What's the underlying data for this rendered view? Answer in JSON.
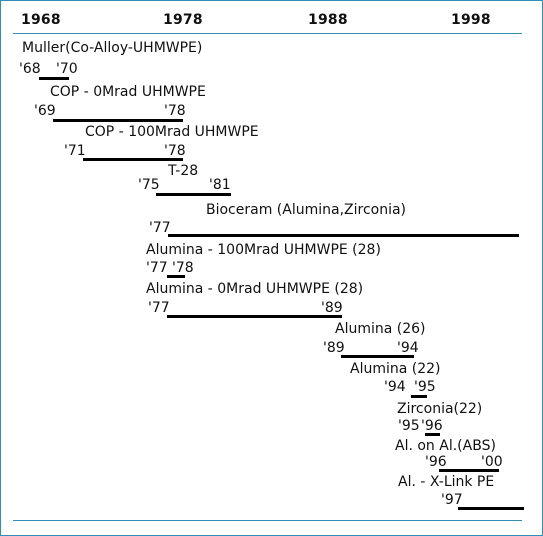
{
  "colors": {
    "frame": "#2f8fb5",
    "bar": "#000000",
    "text": "#111111"
  },
  "axis": {
    "years": [
      "1968",
      "1978",
      "1988",
      "1998"
    ]
  },
  "products": [
    {
      "name": "Muller(Co-Alloy-UHMWPE)",
      "years": [
        "'68",
        "'70"
      ]
    },
    {
      "name": "COP - 0Mrad UHMWPE",
      "years": [
        "'69",
        "'78"
      ]
    },
    {
      "name": "COP - 100Mrad UHMWPE",
      "years": [
        "'71",
        "'78"
      ]
    },
    {
      "name": "T-28",
      "years": [
        "'75",
        "'81"
      ]
    },
    {
      "name": "Bioceram (Alumina,Zirconia)",
      "years": [
        "'77"
      ]
    },
    {
      "name": "Alumina - 100Mrad UHMWPE (28)",
      "years": [
        "'77",
        "'78"
      ]
    },
    {
      "name": "Alumina - 0Mrad UHMWPE (28)",
      "years": [
        "'77",
        "'89"
      ]
    },
    {
      "name": "Alumina (26)",
      "years": [
        "'89",
        "'94"
      ]
    },
    {
      "name": "Alumina (22)",
      "years": [
        "'94",
        "'95"
      ]
    },
    {
      "name": "Zirconia(22)",
      "years": [
        "'95",
        "'96"
      ]
    },
    {
      "name": "Al. on Al.(ABS)",
      "years": [
        "'96",
        "'00"
      ]
    },
    {
      "name": "Al. - X-Link PE",
      "years": [
        "'97"
      ]
    }
  ]
}
